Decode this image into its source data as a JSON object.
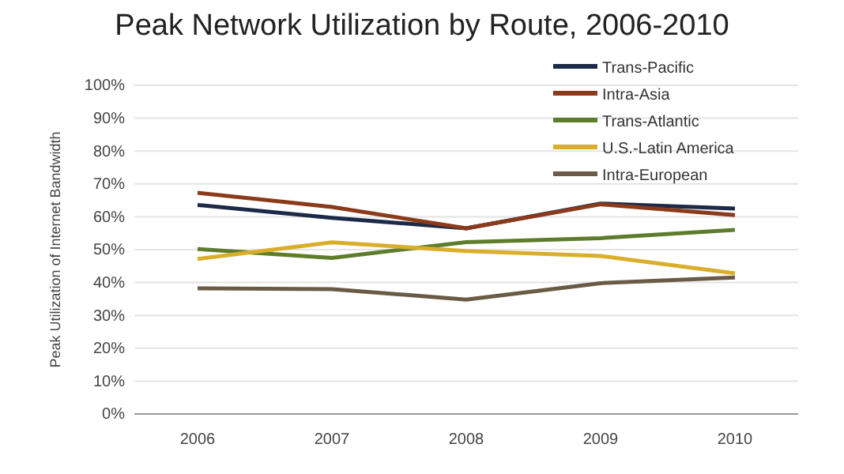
{
  "chart_data": {
    "type": "line",
    "title": "Peak Network Utilization by Route, 2006-2010",
    "ylabel": "Peak Utilization of Internet Bandwidth",
    "categories": [
      "2006",
      "2007",
      "2008",
      "2009",
      "2010"
    ],
    "series": [
      {
        "name": "Trans-Pacific",
        "color": "#1c2a48",
        "values": [
          63.6,
          59.7,
          56.5,
          64,
          62.5
        ]
      },
      {
        "name": "Intra-Asia",
        "color": "#8b3a1a",
        "values": [
          67.3,
          63,
          56.5,
          63.8,
          60.5
        ]
      },
      {
        "name": "Trans-Atlantic",
        "color": "#5e7d2c",
        "values": [
          50.2,
          47.5,
          52.3,
          53.5,
          56
        ]
      },
      {
        "name": "U.S.-Latin America",
        "color": "#d9ae2b",
        "values": [
          47.2,
          52.2,
          49.6,
          48.1,
          42.8
        ]
      },
      {
        "name": "Intra-European",
        "color": "#6b5a45",
        "values": [
          38.2,
          38,
          34.8,
          39.8,
          41.5
        ]
      }
    ],
    "ylim": [
      0,
      100
    ],
    "yticks": [
      {
        "value": 0,
        "label": "0%"
      },
      {
        "value": 10,
        "label": "10%"
      },
      {
        "value": 20,
        "label": "20%"
      },
      {
        "value": 30,
        "label": "30%"
      },
      {
        "value": 40,
        "label": "40%"
      },
      {
        "value": 50,
        "label": "50%"
      },
      {
        "value": 60,
        "label": "60%"
      },
      {
        "value": 70,
        "label": "70%"
      },
      {
        "value": 80,
        "label": "80%"
      },
      {
        "value": 90,
        "label": "90%"
      },
      {
        "value": 100,
        "label": "100%"
      }
    ],
    "grid": "y",
    "legend": "top right",
    "marker": "none",
    "line_style": "solid"
  }
}
